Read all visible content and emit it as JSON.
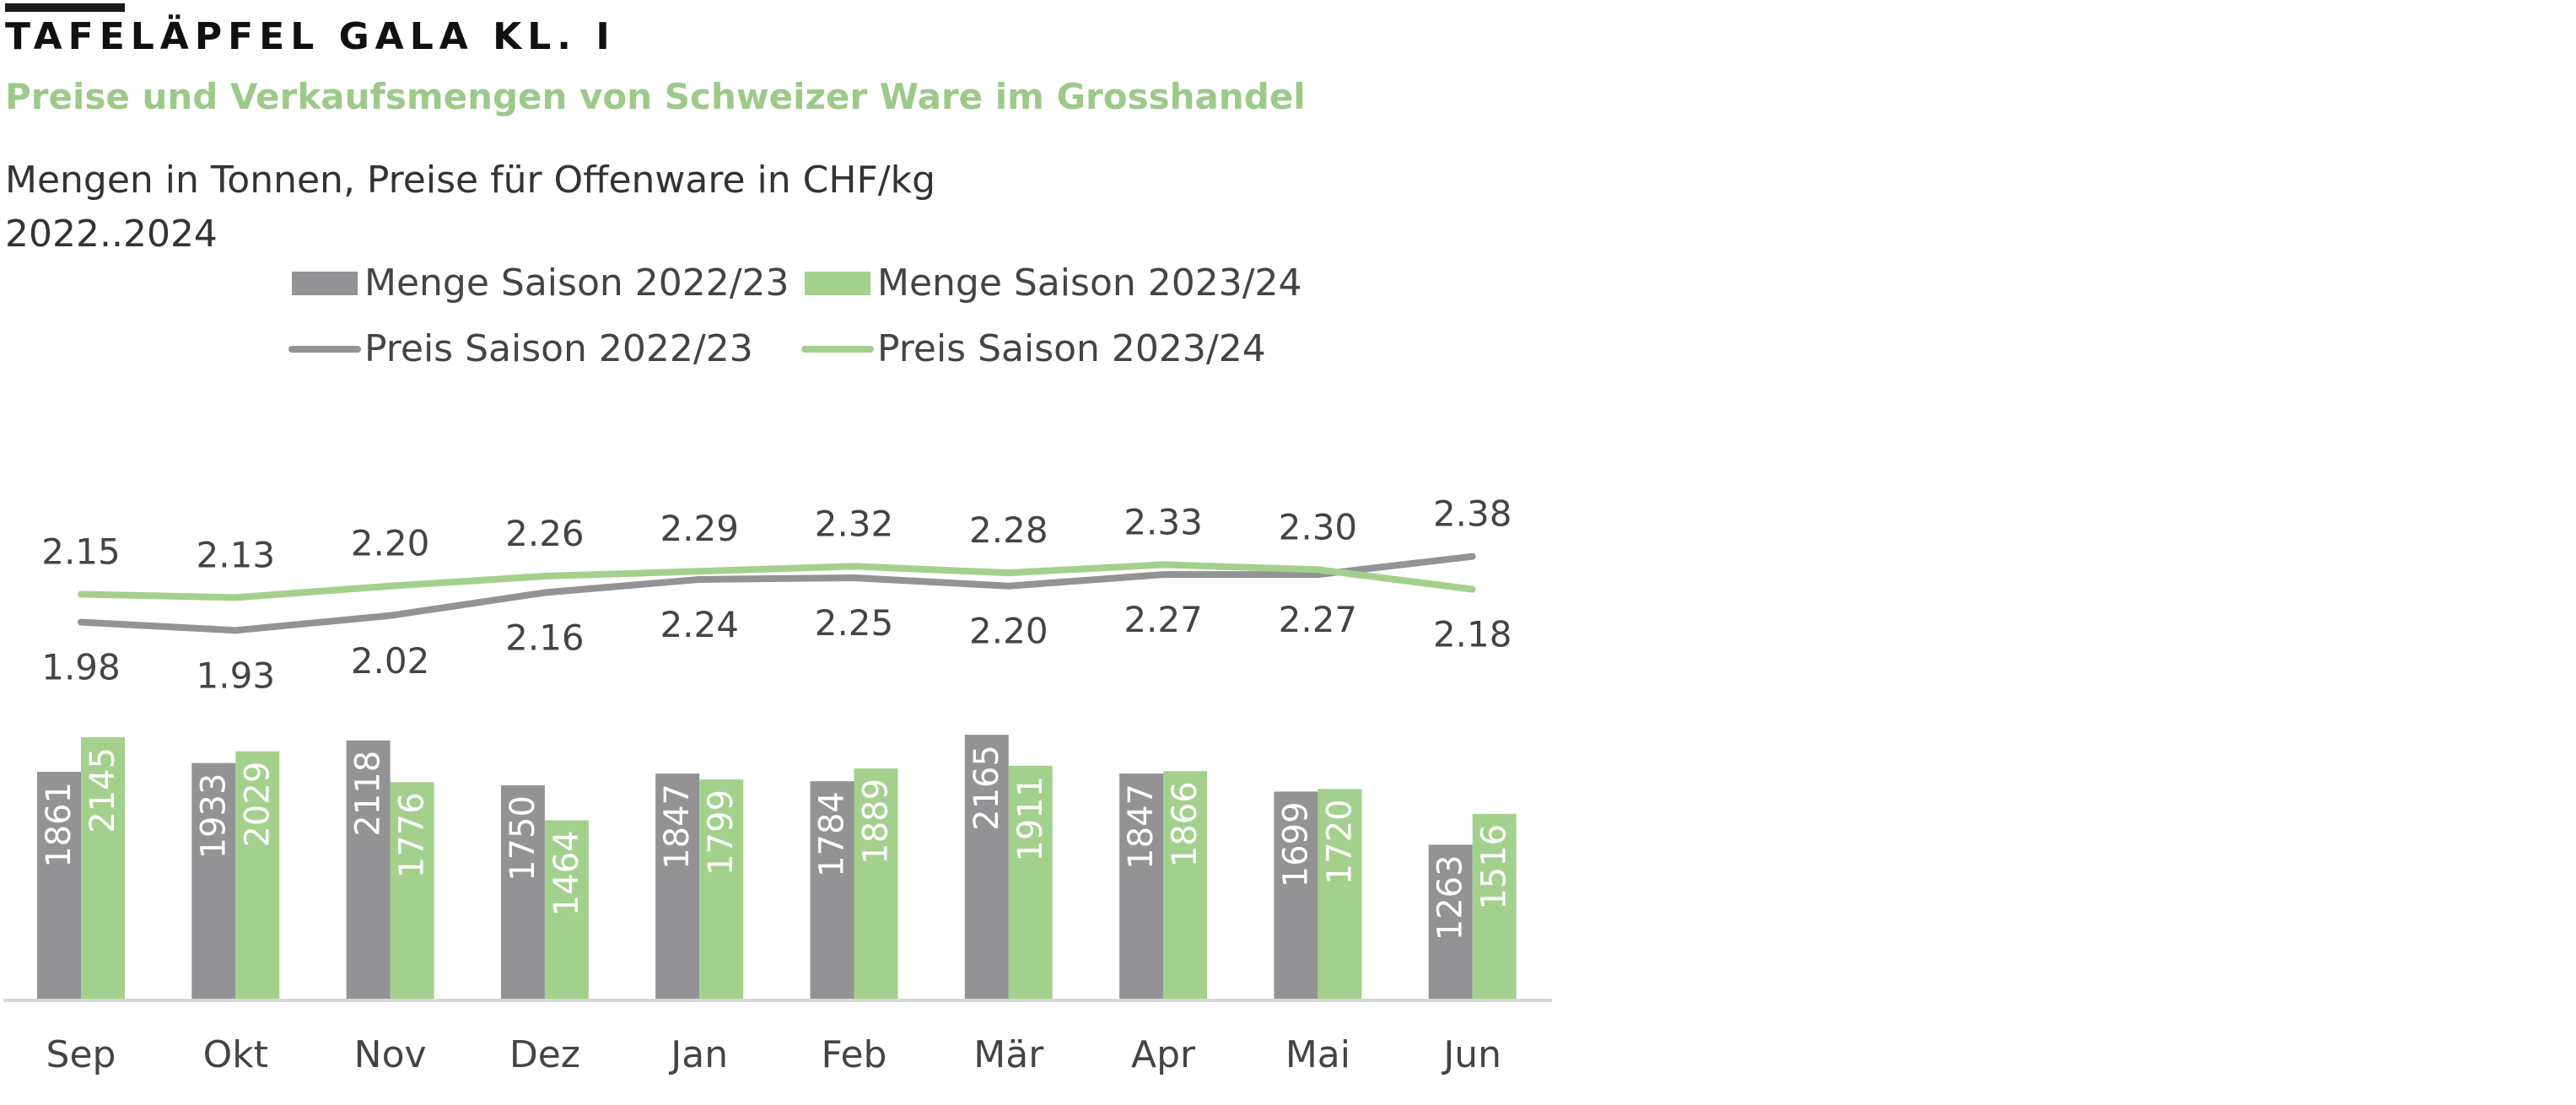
{
  "header": {
    "title": "TAFELÄPFEL GALA KL. I",
    "subtitle": "Preise und Verkaufsmengen von Schweizer Ware im Grosshandel",
    "units": "Mengen in Tonnen, Preise für Offenware in CHF/kg",
    "period": "2022..2024"
  },
  "colors": {
    "series_2022": "#939396",
    "series_2023": "#a4d08e",
    "axis": "#d8d8d8",
    "bar_label": "#ffffff",
    "text": "#444444"
  },
  "chart_data": {
    "type": "bar",
    "categories": [
      "Sep",
      "Okt",
      "Nov",
      "Dez",
      "Jan",
      "Feb",
      "Mär",
      "Apr",
      "Mai",
      "Jun"
    ],
    "series": [
      {
        "name": "Menge Saison 2022/23",
        "kind": "bar",
        "values": [
          1861,
          1933,
          2118,
          1750,
          1847,
          1784,
          2165,
          1847,
          1699,
          1263
        ]
      },
      {
        "name": "Menge Saison 2023/24",
        "kind": "bar",
        "values": [
          2145,
          2029,
          1776,
          1464,
          1799,
          1889,
          1911,
          1866,
          1720,
          1516
        ]
      },
      {
        "name": "Preis Saison 2022/23",
        "kind": "line",
        "values_display": [
          "1.98",
          "1.93",
          "2.02",
          "2.16",
          "2.24",
          "2.25",
          "2.20",
          "2.27",
          "2.27",
          "2.38"
        ]
      },
      {
        "name": "Preis Saison 2023/24",
        "kind": "line",
        "values_display": [
          "2.15",
          "2.13",
          "2.20",
          "2.26",
          "2.29",
          "2.32",
          "2.28",
          "2.33",
          "2.30",
          "2.18"
        ]
      }
    ],
    "bar_ylim": [
      0,
      2200
    ],
    "price_ylim": [
      1.3,
      3.2
    ],
    "legend": "top"
  }
}
